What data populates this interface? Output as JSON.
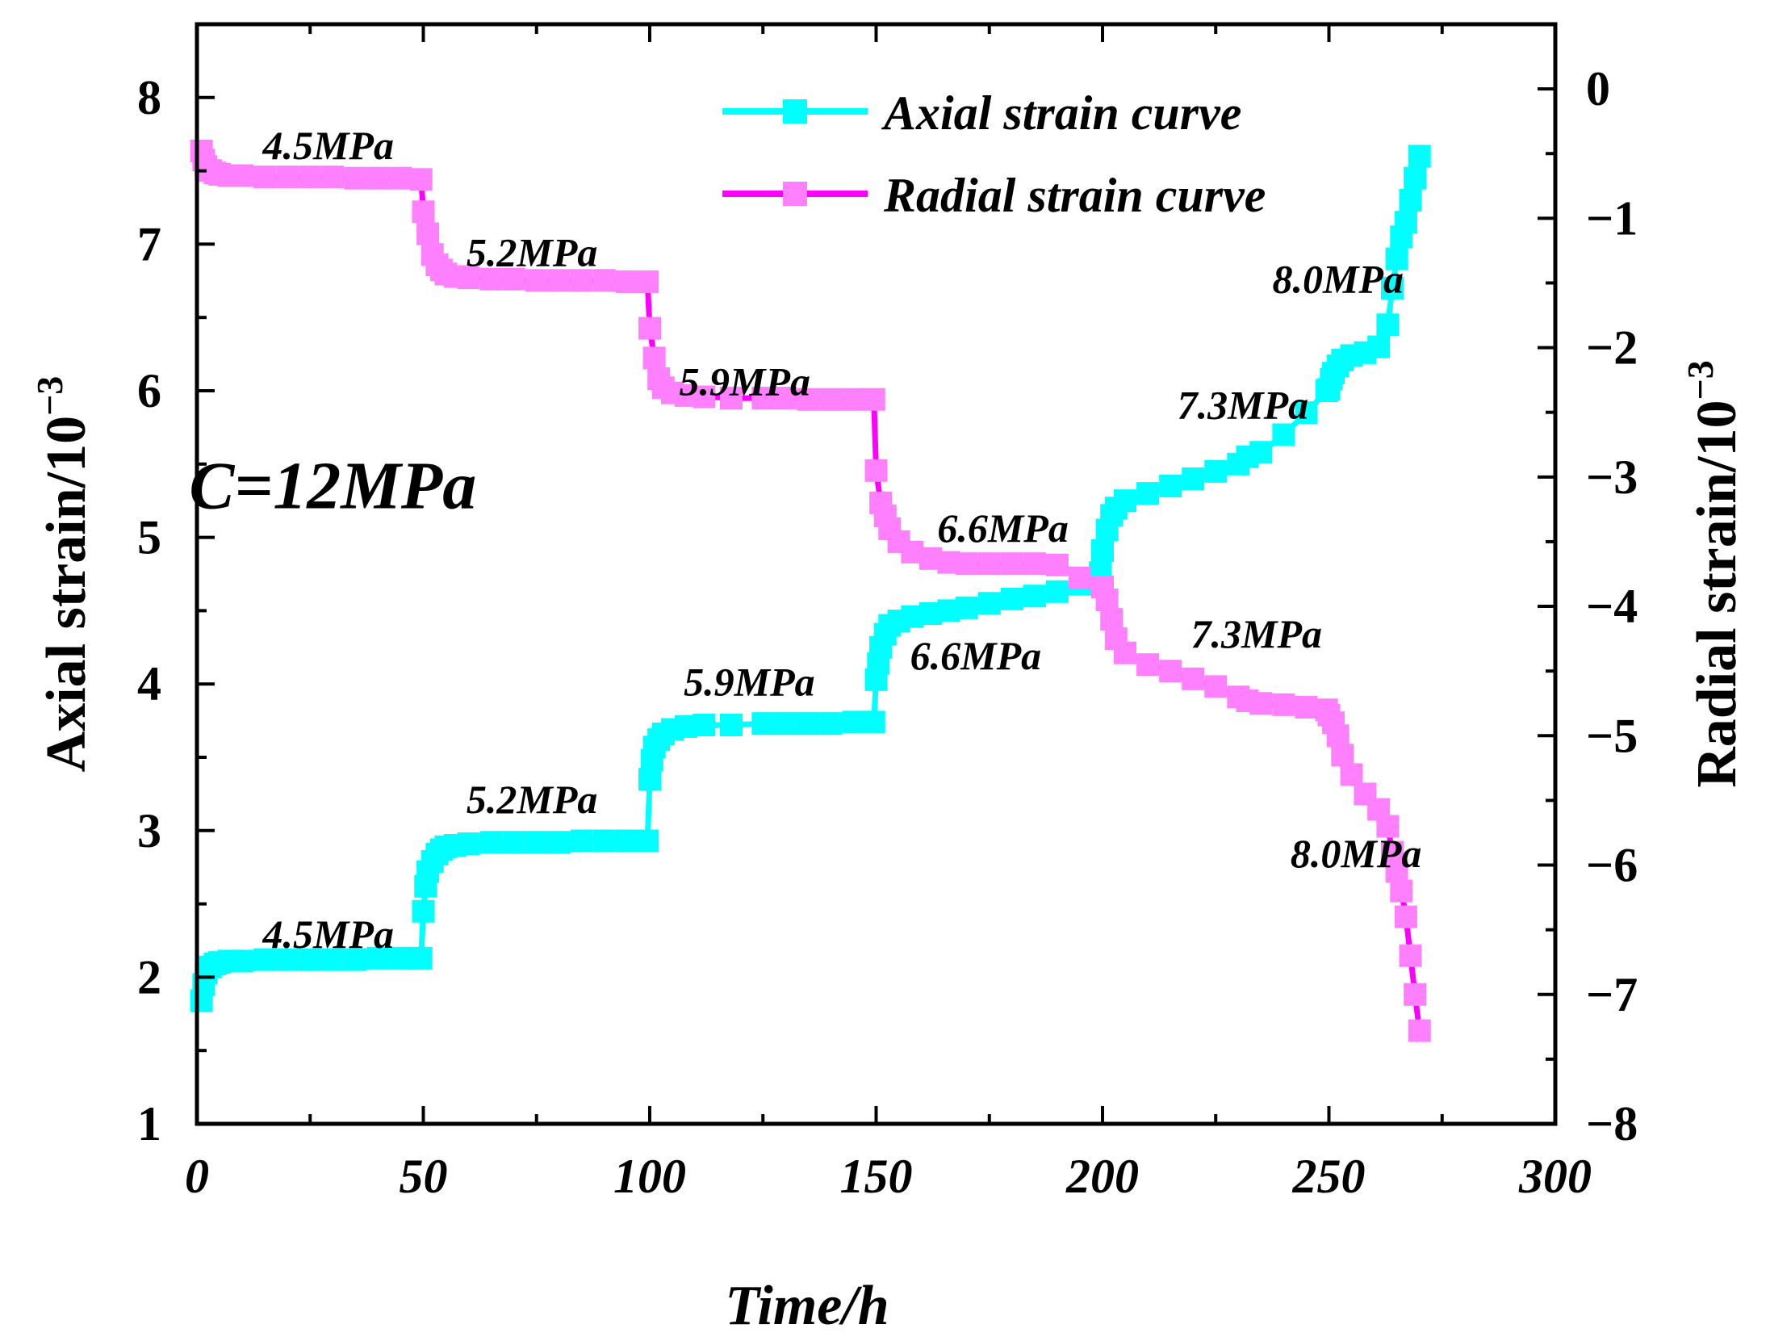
{
  "chart_data": {
    "type": "line",
    "xlabel": "Time/h",
    "ylabel": "Axial strain/10",
    "ylabel_exp": "−3",
    "y2label": "Radial strain/10",
    "y2label_exp": "−3",
    "xlim": [
      0,
      300
    ],
    "ylim": [
      1,
      8.5
    ],
    "y2lim": [
      -8,
      0.5
    ],
    "xticks": [
      0,
      50,
      100,
      150,
      200,
      250,
      300
    ],
    "yticks": [
      1,
      2,
      3,
      4,
      5,
      6,
      7,
      8
    ],
    "y2ticks": [
      0,
      -1,
      -2,
      -3,
      -4,
      -5,
      -6,
      -7,
      -8
    ],
    "xtick_labels": [
      "0",
      "50",
      "100",
      "150",
      "200",
      "250",
      "300"
    ],
    "ytick_labels": [
      "1",
      "2",
      "3",
      "4",
      "5",
      "6",
      "7",
      "8"
    ],
    "y2tick_labels": [
      "0",
      "−1",
      "−2",
      "−3",
      "−4",
      "−5",
      "−6",
      "−7",
      "−8"
    ],
    "colors": {
      "axial": "#00ffff",
      "radial_line": "#ff00ff",
      "radial_marker": "#ff80ff",
      "axis": "#000000"
    },
    "legend": {
      "position": "top-right",
      "entries": [
        {
          "label": "Axial strain curve",
          "series": "axial"
        },
        {
          "label": "Radial strain curve",
          "series": "radial"
        }
      ]
    },
    "series": [
      {
        "name": "Axial strain curve",
        "axis": "left",
        "x": [
          1,
          1.5,
          2,
          3,
          4,
          5,
          7,
          10,
          15,
          20,
          25,
          30,
          35,
          40,
          45,
          49.5,
          50,
          50.5,
          51,
          52,
          53,
          54,
          55,
          57,
          60,
          65,
          70,
          75,
          80,
          85,
          90,
          95,
          99.5,
          100,
          100.5,
          101,
          102,
          103,
          105,
          108,
          112,
          118,
          125,
          130,
          135,
          140,
          145,
          149.5,
          150,
          150.5,
          151,
          152,
          153,
          155,
          158,
          162,
          166,
          170,
          175,
          180,
          185,
          190,
          195,
          199.5,
          200,
          201,
          202,
          203,
          205,
          210,
          215,
          220,
          225,
          230,
          232,
          235,
          240,
          245,
          249.5,
          250,
          250.5,
          251,
          252,
          253,
          255,
          258,
          261,
          263,
          264,
          265,
          266,
          267,
          268,
          269,
          270
        ],
        "y": [
          1.84,
          1.95,
          2.03,
          2.07,
          2.09,
          2.1,
          2.11,
          2.11,
          2.12,
          2.12,
          2.12,
          2.12,
          2.12,
          2.13,
          2.13,
          2.13,
          2.45,
          2.62,
          2.72,
          2.79,
          2.84,
          2.87,
          2.89,
          2.9,
          2.91,
          2.92,
          2.92,
          2.92,
          2.92,
          2.93,
          2.93,
          2.93,
          2.93,
          3.35,
          3.48,
          3.57,
          3.62,
          3.66,
          3.69,
          3.71,
          3.72,
          3.72,
          3.73,
          3.73,
          3.73,
          3.73,
          3.74,
          3.74,
          4.03,
          4.14,
          4.25,
          4.34,
          4.4,
          4.43,
          4.46,
          4.48,
          4.5,
          4.52,
          4.55,
          4.58,
          4.6,
          4.63,
          4.68,
          4.76,
          4.91,
          5.05,
          5.15,
          5.2,
          5.25,
          5.3,
          5.35,
          5.4,
          5.45,
          5.5,
          5.55,
          5.58,
          5.7,
          5.85,
          6.0,
          6.01,
          6.08,
          6.12,
          6.17,
          6.21,
          6.24,
          6.26,
          6.3,
          6.45,
          6.7,
          6.9,
          7.05,
          7.15,
          7.3,
          7.45,
          7.6
        ]
      },
      {
        "name": "Radial strain curve",
        "axis": "right",
        "x": [
          1,
          1.5,
          2,
          3,
          4,
          5,
          7,
          10,
          15,
          20,
          25,
          30,
          35,
          40,
          45,
          49.5,
          50,
          51,
          52,
          53,
          54,
          55,
          57,
          60,
          65,
          70,
          75,
          80,
          85,
          90,
          95,
          99.5,
          100,
          101,
          102,
          103,
          105,
          108,
          112,
          118,
          125,
          130,
          135,
          140,
          145,
          149.5,
          150,
          151,
          152,
          153,
          155,
          158,
          162,
          166,
          170,
          175,
          180,
          185,
          190,
          195,
          200,
          201,
          202,
          203,
          205,
          210,
          215,
          220,
          225,
          230,
          232,
          235,
          240,
          245,
          249.5,
          250,
          251,
          252,
          253,
          255,
          258,
          261,
          263,
          264,
          265,
          266,
          267,
          268,
          269,
          270
        ],
        "y": [
          -0.48,
          -0.55,
          -0.6,
          -0.63,
          -0.65,
          -0.66,
          -0.67,
          -0.67,
          -0.68,
          -0.68,
          -0.68,
          -0.68,
          -0.69,
          -0.69,
          -0.69,
          -0.7,
          -0.95,
          -1.12,
          -1.28,
          -1.36,
          -1.4,
          -1.43,
          -1.45,
          -1.46,
          -1.47,
          -1.47,
          -1.48,
          -1.48,
          -1.48,
          -1.48,
          -1.49,
          -1.49,
          -1.85,
          -2.08,
          -2.24,
          -2.31,
          -2.35,
          -2.37,
          -2.38,
          -2.39,
          -2.39,
          -2.39,
          -2.4,
          -2.4,
          -2.4,
          -2.4,
          -2.95,
          -3.2,
          -3.3,
          -3.4,
          -3.5,
          -3.58,
          -3.63,
          -3.66,
          -3.67,
          -3.67,
          -3.67,
          -3.67,
          -3.68,
          -3.78,
          -3.85,
          -3.95,
          -4.1,
          -4.25,
          -4.36,
          -4.45,
          -4.5,
          -4.56,
          -4.62,
          -4.7,
          -4.73,
          -4.75,
          -4.76,
          -4.78,
          -4.8,
          -4.84,
          -4.9,
          -5.0,
          -5.15,
          -5.3,
          -5.45,
          -5.57,
          -5.7,
          -5.9,
          -6.05,
          -6.2,
          -6.4,
          -6.7,
          -7.0,
          -7.28
        ]
      }
    ],
    "annotations": [
      {
        "text": "C=12MPa",
        "x": 30,
        "y": 5.2,
        "axis": "left",
        "size": "large"
      },
      {
        "text": "4.5MPa",
        "x": 29,
        "y": 7.58,
        "axis": "left"
      },
      {
        "text": "5.2MPa",
        "x": 74,
        "y": 6.85,
        "axis": "left"
      },
      {
        "text": "5.9MPa",
        "x": 121,
        "y": 5.97,
        "axis": "left"
      },
      {
        "text": "6.6MPa",
        "x": 178,
        "y": 4.97,
        "axis": "left"
      },
      {
        "text": "7.3MPa",
        "x": 231,
        "y": 5.81,
        "axis": "left"
      },
      {
        "text": "8.0MPa",
        "x": 252,
        "y": 6.67,
        "axis": "left"
      },
      {
        "text": "4.5MPa",
        "x": 29,
        "y": 2.2,
        "axis": "left"
      },
      {
        "text": "5.2MPa",
        "x": 74,
        "y": 3.12,
        "axis": "left"
      },
      {
        "text": "5.9MPa",
        "x": 122,
        "y": 3.92,
        "axis": "left"
      },
      {
        "text": "6.6MPa",
        "x": 172,
        "y": 4.1,
        "axis": "left"
      },
      {
        "text": "7.3MPa",
        "x": 234,
        "y": 4.25,
        "axis": "left"
      },
      {
        "text": "8.0MPa",
        "x": 256,
        "y": 2.75,
        "axis": "left"
      }
    ]
  }
}
